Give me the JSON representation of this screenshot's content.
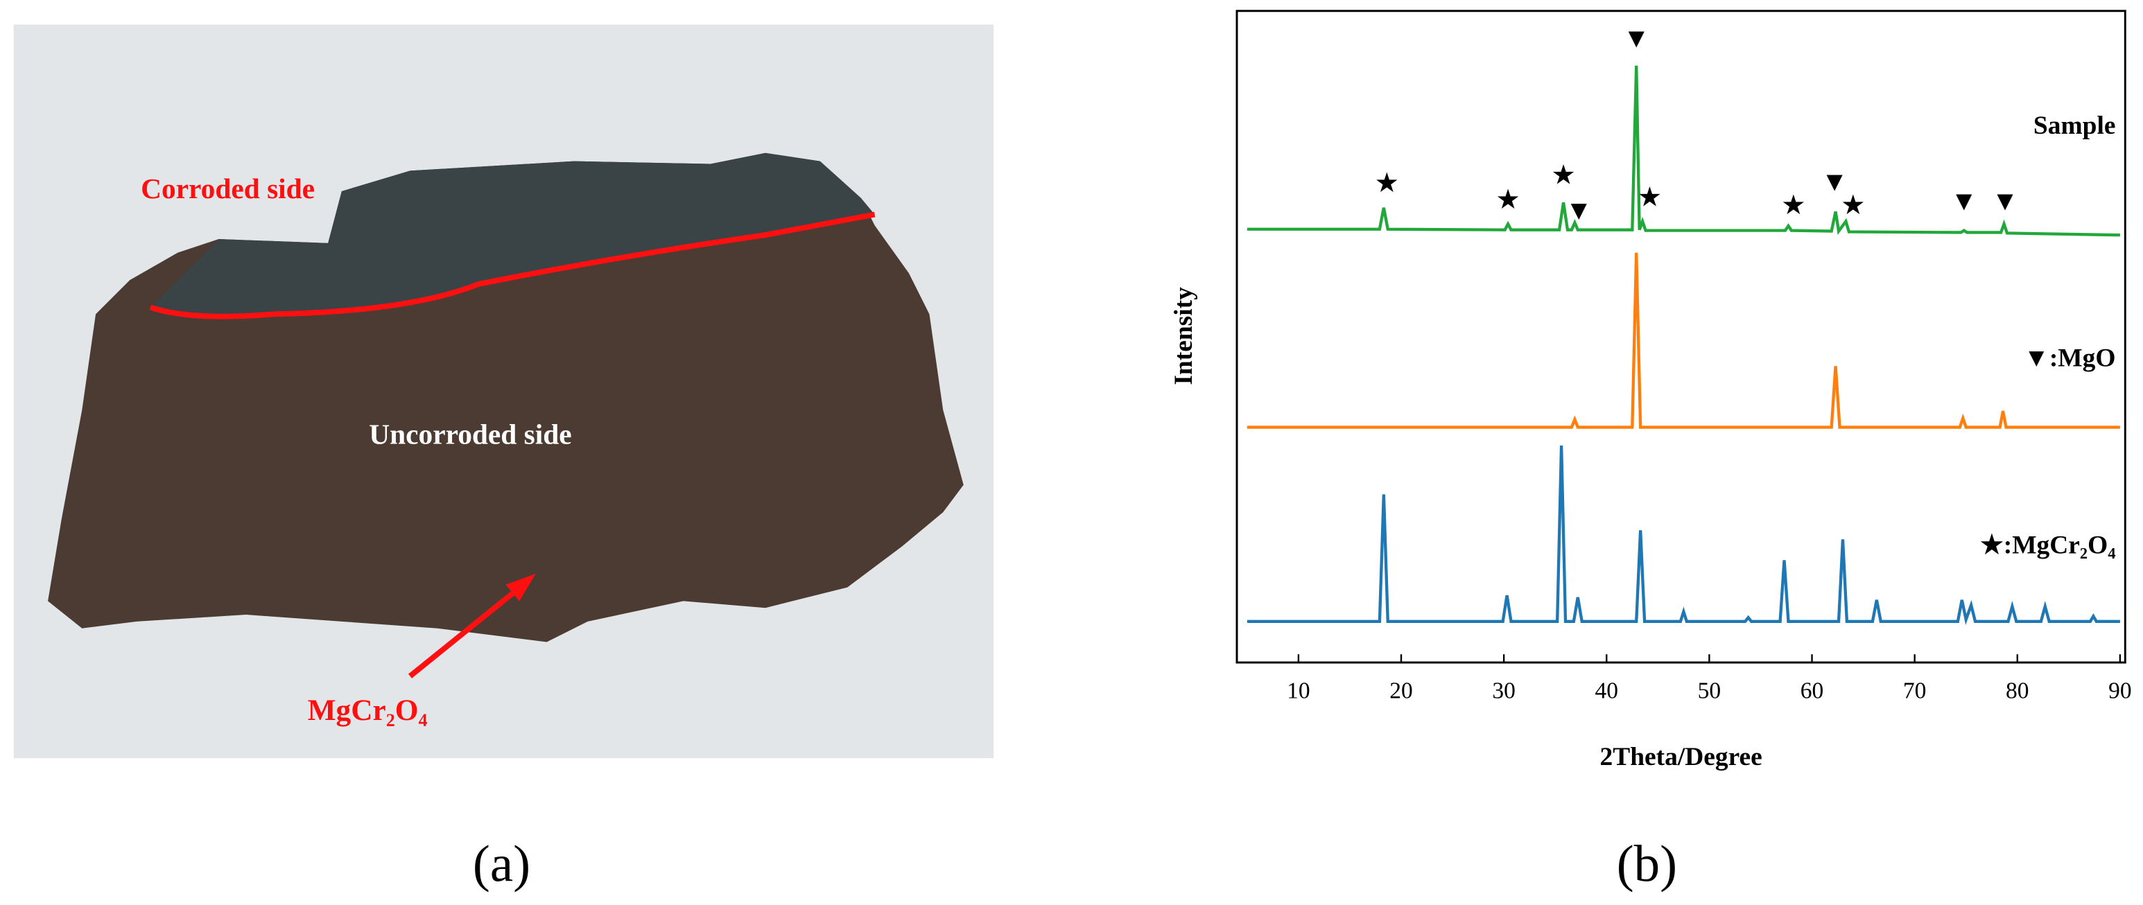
{
  "photo": {
    "corroded_label": "Corroded side",
    "uncorroded_label": "Uncorroded side",
    "phase_label": "MgCr₂O₄"
  },
  "panel_labels": [
    "(a)",
    "(b)"
  ],
  "chart_data": {
    "type": "line",
    "x_label": "2Theta/Degree",
    "y_label": "Intensity",
    "xlim": [
      4,
      90.5
    ],
    "xticks": [
      10,
      20,
      30,
      40,
      50,
      60,
      70,
      80,
      90
    ],
    "ylim": [
      0,
      100
    ],
    "series": [
      {
        "name": "Sample",
        "color": "#22a83a",
        "x": [
          5,
          17.9,
          18.3,
          18.7,
          30.1,
          30.4,
          30.7,
          35.4,
          35.8,
          36.2,
          36.6,
          36.9,
          37.2,
          42.5,
          42.9,
          43.2,
          43.5,
          43.8,
          57.4,
          57.7,
          58.0,
          61.9,
          62.3,
          62.6,
          63.3,
          63.6,
          74.5,
          74.8,
          75.1,
          78.4,
          78.7,
          79.0,
          90
        ],
        "values": [
          66.5,
          66.5,
          69.8,
          66.5,
          66.4,
          67.3,
          66.4,
          66.4,
          70.6,
          66.4,
          66.4,
          67.5,
          66.4,
          66.4,
          91.6,
          66.4,
          67.7,
          66.3,
          66.3,
          67.0,
          66.3,
          66.2,
          69.2,
          66.2,
          67.7,
          66.1,
          66.0,
          66.3,
          66.0,
          66.0,
          67.3,
          65.9,
          65.6
        ]
      },
      {
        "name": "▼:MgO",
        "color": "#ff7f0e",
        "x": [
          5,
          36.6,
          36.9,
          37.2,
          42.5,
          42.9,
          43.3,
          61.9,
          62.3,
          62.7,
          74.4,
          74.7,
          75.0,
          78.3,
          78.6,
          78.9,
          90
        ],
        "values": [
          36.1,
          36.1,
          37.3,
          36.1,
          36.1,
          62.9,
          36.1,
          36.1,
          45.5,
          36.1,
          36.1,
          37.5,
          36.1,
          36.1,
          38.6,
          36.1,
          36.1
        ]
      },
      {
        "name": "★:MgCr₂O₄",
        "color": "#1f77b4",
        "x": [
          5,
          17.9,
          18.3,
          18.7,
          29.9,
          30.3,
          30.7,
          35.2,
          35.6,
          36.0,
          36.8,
          37.2,
          37.6,
          42.9,
          43.3,
          43.7,
          47.2,
          47.5,
          47.8,
          53.5,
          53.8,
          54.1,
          56.9,
          57.3,
          57.7,
          62.6,
          63.0,
          63.4,
          65.9,
          66.3,
          66.7,
          74.2,
          74.6,
          75.0,
          75.5,
          75.9,
          79.1,
          79.5,
          79.9,
          82.3,
          82.7,
          83.1,
          87.1,
          87.4,
          87.7,
          90
        ],
        "values": [
          6.3,
          6.3,
          25.8,
          6.3,
          6.3,
          10.3,
          6.3,
          6.3,
          33.3,
          6.3,
          6.3,
          10.0,
          6.3,
          6.3,
          20.3,
          6.3,
          6.3,
          7.8,
          6.3,
          6.3,
          6.9,
          6.3,
          6.3,
          15.7,
          6.3,
          6.3,
          18.9,
          6.3,
          6.3,
          9.6,
          6.3,
          6.3,
          9.6,
          6.6,
          8.8,
          6.3,
          6.3,
          8.6,
          6.3,
          6.3,
          8.6,
          6.3,
          6.3,
          7.1,
          6.3,
          6.3
        ]
      }
    ],
    "annotations": [
      {
        "text": "★",
        "x": 18.6,
        "y": 73.2
      },
      {
        "text": "★",
        "x": 30.4,
        "y": 70.6
      },
      {
        "text": "★",
        "x": 35.8,
        "y": 74.4
      },
      {
        "text": "▼",
        "x": 37.3,
        "y": 69.0
      },
      {
        "text": "▼",
        "x": 42.9,
        "y": 95.4
      },
      {
        "text": "★",
        "x": 44.2,
        "y": 71.0
      },
      {
        "text": "★",
        "x": 58.2,
        "y": 69.8
      },
      {
        "text": "▼",
        "x": 62.2,
        "y": 73.4
      },
      {
        "text": "★",
        "x": 64.0,
        "y": 69.8
      },
      {
        "text": "▼",
        "x": 74.8,
        "y": 70.4
      },
      {
        "text": "▼",
        "x": 78.8,
        "y": 70.4
      }
    ]
  }
}
